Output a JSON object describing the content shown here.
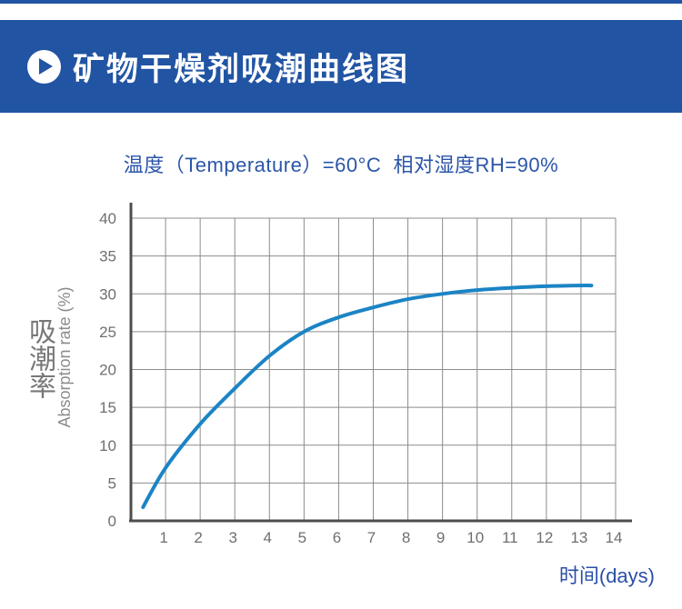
{
  "header": {
    "title": "矿物干燥剂吸潮曲线图"
  },
  "subtitle": {
    "text": "温度（Temperature）=60°C  相对湿度RH=90%"
  },
  "colors": {
    "accent": "#2154a3",
    "heading_blue": "#2b55a8",
    "axis_title_blue": "#2b4fa8",
    "curve_blue": "#1b84c5",
    "grid_gray": "#8c8c8c",
    "axis_gray": "#4d4d4d",
    "tick_gray": "#6f6f6f"
  },
  "chart": {
    "y_title_cn": "吸潮率",
    "y_title_en": "Absorption rate (%)",
    "x_title": "时间(days)"
  },
  "chart_data": {
    "type": "line",
    "title": "矿物干燥剂吸潮曲线图",
    "subtitle": "温度（Temperature）=60°C 相对湿度RH=90%",
    "xlabel": "时间(days)",
    "ylabel": "Absorption rate (%)",
    "xlim": [
      0,
      14
    ],
    "ylim": [
      0,
      40
    ],
    "x_ticks": [
      "1",
      "2",
      "3",
      "4",
      "5",
      "6",
      "7",
      "8",
      "9",
      "10",
      "11",
      "12",
      "13",
      "14"
    ],
    "y_ticks": [
      "0",
      "5",
      "10",
      "15",
      "20",
      "25",
      "30",
      "35",
      "40"
    ],
    "grid": true,
    "legend": false,
    "x": [
      0.35,
      1,
      2,
      3,
      4,
      5,
      6,
      7,
      8,
      9,
      10,
      11,
      12,
      13,
      13.3
    ],
    "series": [
      {
        "name": "吸潮率 Absorption rate (%)",
        "values": [
          1.8,
          7,
          12.8,
          17.5,
          21.8,
          25,
          26.9,
          28.2,
          29.3,
          30,
          30.5,
          30.8,
          31,
          31.1,
          31.1
        ],
        "color": "#1b84c5"
      }
    ]
  }
}
